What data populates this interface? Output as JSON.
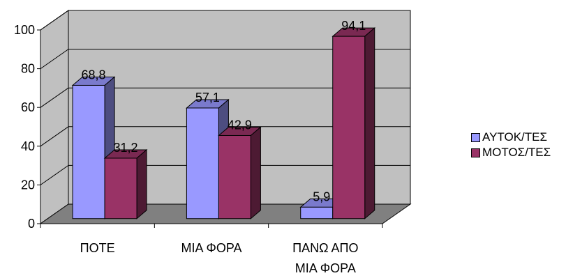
{
  "chart_data": {
    "type": "bar",
    "title": "",
    "xlabel": "",
    "ylabel": "",
    "categories": [
      "ΠΟΤΕ",
      "ΜΙΑ ΦΟΡΑ",
      "ΠΑΝΩ ΑΠΟ ΜΙΑ ΦΟΡΑ"
    ],
    "series": [
      {
        "name": "ΑΥΤΟΚ/ΤΕΣ",
        "values": [
          68.8,
          57.1,
          5.9
        ],
        "color": "#9999FF"
      },
      {
        "name": "ΜΟΤΟΣ/ΤΕΣ",
        "values": [
          31.2,
          42.9,
          94.1
        ],
        "color": "#993366"
      }
    ],
    "data_labels": [
      [
        "68,8",
        "57,1",
        "5,9"
      ],
      [
        "31,2",
        "42,9",
        "94,1"
      ]
    ],
    "ylim": [
      0,
      100
    ],
    "yticks": [
      "0",
      "20",
      "40",
      "60",
      "80",
      "100"
    ],
    "grid": true,
    "legend_position": "right",
    "three_d": true,
    "wall_color": "#C0C0C0",
    "floor_color": "#808080"
  }
}
